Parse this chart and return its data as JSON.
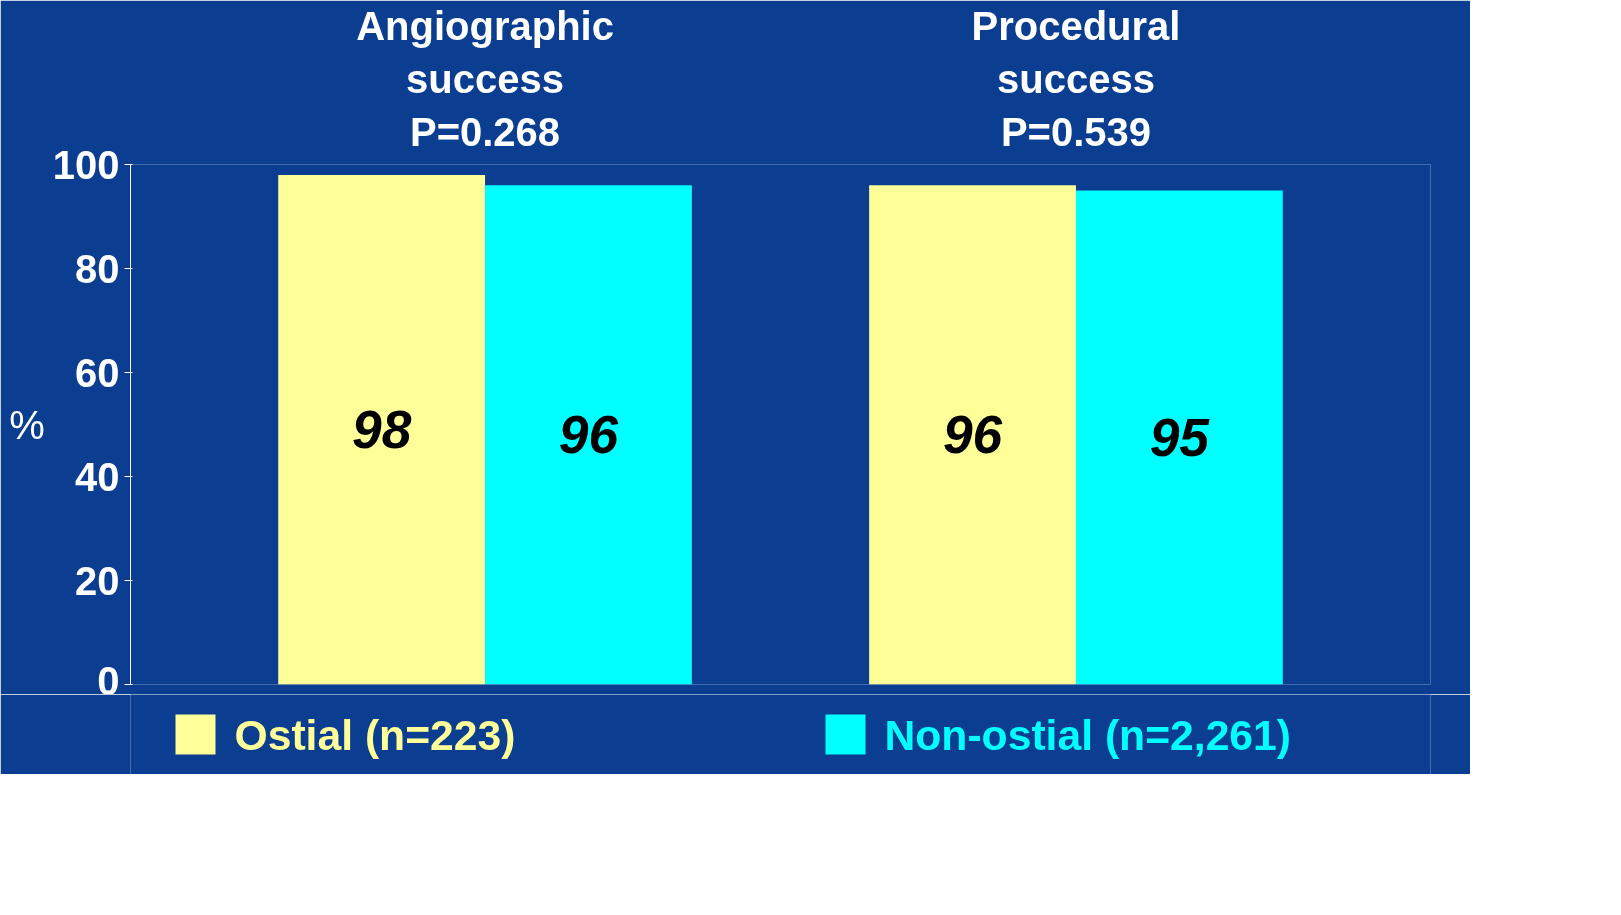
{
  "chart_data": {
    "type": "bar",
    "categories": [
      "Angiographic success",
      "Procedural success"
    ],
    "series": [
      {
        "name": "Ostial (n=223)",
        "color": "#ffff99",
        "values": [
          98,
          96
        ]
      },
      {
        "name": "Non-ostial (n=2,261)",
        "color": "#00ffff",
        "values": [
          96,
          95
        ]
      }
    ],
    "ylabel": "%",
    "ylim": [
      0,
      100
    ],
    "yticks": [
      0,
      20,
      40,
      60,
      80,
      100
    ],
    "annotations": [
      "P=0.268",
      "P=0.539"
    ],
    "data_labels": true,
    "grid": false,
    "legend": "bottom"
  }
}
